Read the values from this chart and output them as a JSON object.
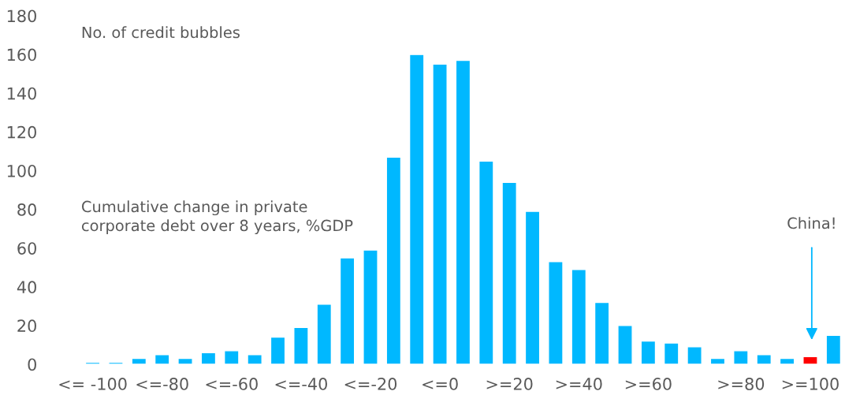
{
  "chart_data": {
    "type": "bar",
    "categories": [
      "<= -100",
      null,
      null,
      "<=-80",
      null,
      null,
      "<=-60",
      null,
      null,
      "<=-40",
      null,
      null,
      "<=-20",
      null,
      null,
      "<=0",
      null,
      null,
      ">=20",
      null,
      null,
      ">=40",
      null,
      null,
      ">=60",
      null,
      null,
      null,
      ">=80",
      null,
      null,
      ">=100",
      null
    ],
    "values": [
      1,
      1,
      3,
      5,
      3,
      6,
      7,
      5,
      14,
      19,
      31,
      55,
      59,
      107,
      160,
      155,
      157,
      105,
      94,
      79,
      53,
      49,
      32,
      20,
      12,
      11,
      9,
      3,
      7,
      5,
      3,
      4,
      15
    ],
    "colors": [
      "#00b8ff",
      "#00b8ff",
      "#00b8ff",
      "#00b8ff",
      "#00b8ff",
      "#00b8ff",
      "#00b8ff",
      "#00b8ff",
      "#00b8ff",
      "#00b8ff",
      "#00b8ff",
      "#00b8ff",
      "#00b8ff",
      "#00b8ff",
      "#00b8ff",
      "#00b8ff",
      "#00b8ff",
      "#00b8ff",
      "#00b8ff",
      "#00b8ff",
      "#00b8ff",
      "#00b8ff",
      "#00b8ff",
      "#00b8ff",
      "#00b8ff",
      "#00b8ff",
      "#00b8ff",
      "#00b8ff",
      "#00b8ff",
      "#00b8ff",
      "#00b8ff",
      "#ff0000",
      "#00b8ff"
    ],
    "ylim": [
      0,
      180
    ],
    "yticks": [
      0,
      20,
      40,
      60,
      80,
      100,
      120,
      140,
      160,
      180
    ],
    "grid": false,
    "legend": false,
    "annotations": [
      "No. of credit bubbles",
      "Cumulative change in private\ncorporate debt over 8 years, %GDP",
      "China!"
    ]
  }
}
